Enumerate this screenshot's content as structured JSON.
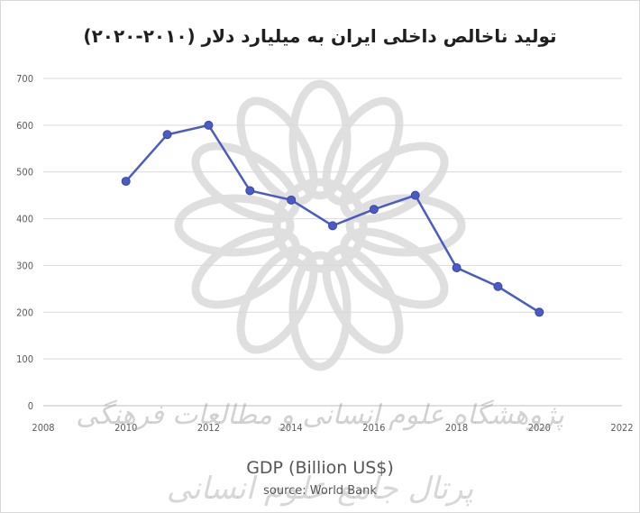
{
  "chart_data": {
    "type": "line",
    "title": "تولید ناخالص داخلی ایران به میلیارد دلار (۲۰۱۰-۲۰۲۰)",
    "xlabel": "GDP (Billion US$)",
    "source_note": "source: World Bank",
    "xlim": [
      2008,
      2022
    ],
    "ylim": [
      0,
      700
    ],
    "x_ticks": [
      "2008",
      "2010",
      "2012",
      "2014",
      "2016",
      "2018",
      "2020",
      "2022"
    ],
    "y_ticks": [
      "0",
      "100",
      "200",
      "300",
      "400",
      "500",
      "600",
      "700"
    ],
    "grid": true,
    "legend": "none",
    "series": [
      {
        "color": "#4a5bc4",
        "points": [
          {
            "x": 2010,
            "y": 480
          },
          {
            "x": 2011,
            "y": 580
          },
          {
            "x": 2012,
            "y": 600
          },
          {
            "x": 2013,
            "y": 460
          },
          {
            "x": 2014,
            "y": 440
          },
          {
            "x": 2015,
            "y": 385
          },
          {
            "x": 2016,
            "y": 420
          },
          {
            "x": 2017,
            "y": 450
          },
          {
            "x": 2018,
            "y": 295
          },
          {
            "x": 2019,
            "y": 255
          },
          {
            "x": 2020,
            "y": 200
          }
        ]
      }
    ],
    "watermark_lines": [
      "پژوهشگاه علوم انسانی و مطالعات فرهنگی",
      "پرتال جامع علوم انسانی"
    ]
  }
}
